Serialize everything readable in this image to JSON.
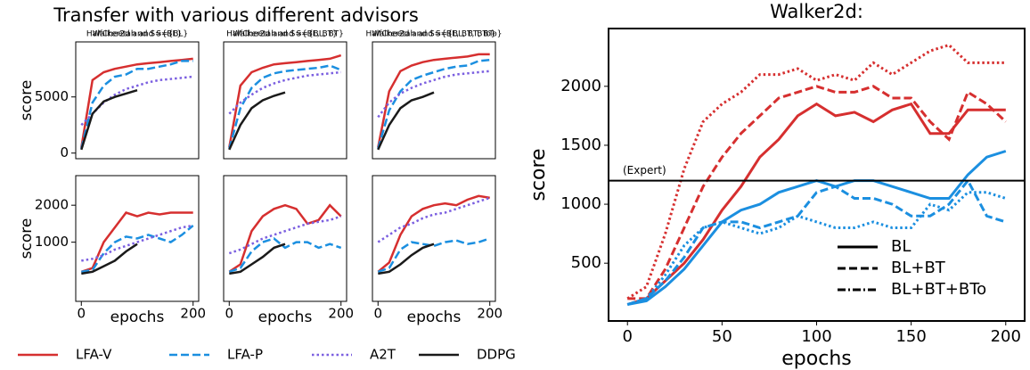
{
  "figure_title": "Transfer with various different advisors",
  "chart_data": [
    {
      "type": "line",
      "title": "HalfCheetah and S={BL}",
      "ylabel": "score",
      "xlim": [
        -10,
        210
      ],
      "ylim": [
        -500,
        9900
      ],
      "yticks": [
        0,
        5000
      ],
      "x": [
        0,
        20,
        40,
        60,
        80,
        100,
        120,
        140,
        160,
        180,
        200
      ],
      "series": [
        {
          "name": "LFA-V",
          "color": "#d62f2f",
          "dash": "solid",
          "values": [
            500,
            6500,
            7200,
            7500,
            7700,
            7900,
            8000,
            8100,
            8200,
            8300,
            8400
          ]
        },
        {
          "name": "LFA-P",
          "color": "#1b8fe0",
          "dash": "dashed",
          "values": [
            400,
            4500,
            6000,
            6800,
            7000,
            7500,
            7500,
            7700,
            7900,
            8200,
            8200
          ]
        },
        {
          "name": "A2T",
          "color": "#7b5fe0",
          "dash": "dotted",
          "values": [
            2500,
            3500,
            4500,
            5200,
            5700,
            6000,
            6300,
            6500,
            6600,
            6700,
            6800
          ]
        },
        {
          "name": "DDPG",
          "color": "#1a1a1a",
          "dash": "solid",
          "values": [
            300,
            3500,
            4600,
            5000,
            5300,
            5600,
            null,
            null,
            null,
            null,
            null
          ]
        }
      ]
    },
    {
      "type": "line",
      "title": "HalfCheetah and S={BL, BT}",
      "xlim": [
        -10,
        210
      ],
      "ylim": [
        -500,
        9900
      ],
      "x": [
        0,
        20,
        40,
        60,
        80,
        100,
        120,
        140,
        160,
        180,
        200
      ],
      "series": [
        {
          "name": "LFA-V",
          "color": "#d62f2f",
          "dash": "solid",
          "values": [
            500,
            6000,
            7200,
            7600,
            7900,
            8000,
            8100,
            8200,
            8300,
            8400,
            8700
          ]
        },
        {
          "name": "LFA-P",
          "color": "#1b8fe0",
          "dash": "dashed",
          "values": [
            400,
            4000,
            5800,
            6700,
            7100,
            7300,
            7400,
            7500,
            7600,
            7800,
            7400
          ]
        },
        {
          "name": "A2T",
          "color": "#7b5fe0",
          "dash": "dotted",
          "values": [
            3500,
            4500,
            5200,
            5800,
            6200,
            6500,
            6700,
            6900,
            7000,
            7100,
            7200
          ]
        },
        {
          "name": "DDPG",
          "color": "#1a1a1a",
          "dash": "solid",
          "values": [
            300,
            2500,
            4000,
            4700,
            5100,
            5400,
            null,
            null,
            null,
            null,
            null
          ]
        }
      ]
    },
    {
      "type": "line",
      "title": "HalfCheetah and S={BL, BT, BTo}",
      "xlim": [
        -10,
        210
      ],
      "ylim": [
        -500,
        9900
      ],
      "x": [
        0,
        20,
        40,
        60,
        80,
        100,
        120,
        140,
        160,
        180,
        200
      ],
      "series": [
        {
          "name": "LFA-V",
          "color": "#d62f2f",
          "dash": "solid",
          "values": [
            500,
            5500,
            7300,
            7800,
            8100,
            8300,
            8400,
            8500,
            8600,
            8800,
            8800
          ]
        },
        {
          "name": "LFA-P",
          "color": "#1b8fe0",
          "dash": "dashed",
          "values": [
            400,
            3800,
            5500,
            6500,
            6900,
            7200,
            7500,
            7700,
            7800,
            8200,
            8300
          ]
        },
        {
          "name": "A2T",
          "color": "#7b5fe0",
          "dash": "dotted",
          "values": [
            3200,
            4500,
            5300,
            5800,
            6200,
            6500,
            6800,
            7000,
            7100,
            7200,
            7300
          ]
        },
        {
          "name": "DDPG",
          "color": "#1a1a1a",
          "dash": "solid",
          "values": [
            300,
            2500,
            4000,
            4700,
            5000,
            5400,
            null,
            null,
            null,
            null,
            null
          ]
        }
      ]
    },
    {
      "type": "line",
      "title": "Walker2d and S={BL}",
      "ylabel": "score",
      "xlabel": "epochs",
      "xlim": [
        -10,
        210
      ],
      "ylim": [
        -600,
        2800
      ],
      "yticks": [
        1000,
        2000
      ],
      "xticks": [
        0,
        200
      ],
      "x": [
        0,
        20,
        40,
        60,
        80,
        100,
        120,
        140,
        160,
        180,
        200
      ],
      "series": [
        {
          "name": "LFA-V",
          "color": "#d62f2f",
          "dash": "solid",
          "values": [
            200,
            300,
            1000,
            1400,
            1800,
            1700,
            1800,
            1750,
            1800,
            1800,
            1800
          ]
        },
        {
          "name": "LFA-P",
          "color": "#1b8fe0",
          "dash": "dashed",
          "values": [
            200,
            250,
            700,
            1000,
            1150,
            1100,
            1200,
            1100,
            1000,
            1200,
            1450
          ]
        },
        {
          "name": "A2T",
          "color": "#7b5fe0",
          "dash": "dotted",
          "values": [
            500,
            550,
            650,
            800,
            900,
            1000,
            1100,
            1200,
            1300,
            1400,
            1450
          ]
        },
        {
          "name": "DDPG",
          "color": "#1a1a1a",
          "dash": "solid",
          "values": [
            150,
            200,
            350,
            500,
            750,
            950,
            null,
            null,
            null,
            null,
            null
          ]
        }
      ]
    },
    {
      "type": "line",
      "title": "Walker2d and S={BL, BT}",
      "xlabel": "epochs",
      "xlim": [
        -10,
        210
      ],
      "ylim": [
        -600,
        2800
      ],
      "xticks": [
        0,
        200
      ],
      "x": [
        0,
        20,
        40,
        60,
        80,
        100,
        120,
        140,
        160,
        180,
        200
      ],
      "series": [
        {
          "name": "LFA-V",
          "color": "#d62f2f",
          "dash": "solid",
          "values": [
            200,
            400,
            1300,
            1700,
            1900,
            2000,
            1900,
            1500,
            1600,
            2000,
            1700
          ]
        },
        {
          "name": "LFA-P",
          "color": "#1b8fe0",
          "dash": "dashed",
          "values": [
            200,
            300,
            750,
            1000,
            1100,
            850,
            1000,
            1000,
            850,
            950,
            850
          ]
        },
        {
          "name": "A2T",
          "color": "#7b5fe0",
          "dash": "dotted",
          "values": [
            700,
            800,
            950,
            1100,
            1200,
            1300,
            1400,
            1500,
            1550,
            1600,
            1700
          ]
        },
        {
          "name": "DDPG",
          "color": "#1a1a1a",
          "dash": "solid",
          "values": [
            150,
            200,
            400,
            600,
            850,
            950,
            null,
            null,
            null,
            null,
            null
          ]
        }
      ]
    },
    {
      "type": "line",
      "title": "Walker2d and S={BL, BT, BTo}",
      "xlabel": "epochs",
      "xlim": [
        -10,
        210
      ],
      "ylim": [
        -600,
        2800
      ],
      "xticks": [
        0,
        200
      ],
      "x": [
        0,
        20,
        40,
        60,
        80,
        100,
        120,
        140,
        160,
        180,
        200
      ],
      "series": [
        {
          "name": "LFA-V",
          "color": "#d62f2f",
          "dash": "solid",
          "values": [
            200,
            450,
            1200,
            1700,
            1900,
            2000,
            2050,
            2000,
            2150,
            2250,
            2200
          ]
        },
        {
          "name": "LFA-P",
          "color": "#1b8fe0",
          "dash": "dashed",
          "values": [
            200,
            300,
            800,
            1000,
            950,
            900,
            1000,
            1050,
            950,
            1000,
            1100
          ]
        },
        {
          "name": "A2T",
          "color": "#7b5fe0",
          "dash": "dotted",
          "values": [
            1000,
            1200,
            1400,
            1500,
            1650,
            1750,
            1800,
            1900,
            2000,
            2100,
            2200
          ]
        },
        {
          "name": "DDPG",
          "color": "#1a1a1a",
          "dash": "solid",
          "values": [
            150,
            200,
            400,
            650,
            850,
            950,
            null,
            null,
            null,
            null,
            null
          ]
        }
      ]
    },
    {
      "type": "line",
      "title": "Walker2d:",
      "ylabel": "score",
      "xlabel": "epochs",
      "xlim": [
        -10,
        210
      ],
      "ylim": [
        10,
        2490
      ],
      "xticks": [
        0,
        50,
        100,
        150,
        200
      ],
      "yticks": [
        500,
        1000,
        1500,
        2000
      ],
      "hline": 1200,
      "hline_label": "(Expert)",
      "legend_color": "#000000",
      "x": [
        0,
        10,
        20,
        30,
        40,
        50,
        60,
        70,
        80,
        90,
        100,
        110,
        120,
        130,
        140,
        150,
        160,
        170,
        180,
        190,
        200
      ],
      "series": [
        {
          "name": "BL",
          "color": "#d62f2f",
          "dash": "solid",
          "values": [
            150,
            200,
            350,
            500,
            700,
            950,
            1150,
            1400,
            1550,
            1750,
            1850,
            1750,
            1780,
            1700,
            1800,
            1850,
            1600,
            1600,
            1800,
            1800,
            1800
          ]
        },
        {
          "name": "BL+BT",
          "color": "#d62f2f",
          "dash": "dashed",
          "values": [
            200,
            200,
            450,
            800,
            1150,
            1400,
            1600,
            1750,
            1900,
            1950,
            2000,
            1950,
            1950,
            2000,
            1900,
            1900,
            1700,
            1550,
            1950,
            1850,
            1700
          ]
        },
        {
          "name": "BL+BT+BTo",
          "color": "#d62f2f",
          "dash": "dotted",
          "values": [
            200,
            300,
            750,
            1300,
            1700,
            1850,
            1950,
            2100,
            2100,
            2150,
            2050,
            2100,
            2050,
            2200,
            2100,
            2200,
            2300,
            2350,
            2200,
            2200,
            2200
          ]
        },
        {
          "name": "BL",
          "color": "#1b8fe0",
          "dash": "solid",
          "values": [
            150,
            180,
            300,
            450,
            650,
            850,
            950,
            1000,
            1100,
            1150,
            1200,
            1150,
            1200,
            1200,
            1150,
            1100,
            1050,
            1050,
            1250,
            1400,
            1450
          ]
        },
        {
          "name": "BL+BT",
          "color": "#1b8fe0",
          "dash": "dashed",
          "values": [
            150,
            200,
            350,
            550,
            800,
            850,
            850,
            800,
            850,
            900,
            1100,
            1150,
            1050,
            1050,
            1000,
            900,
            900,
            1000,
            1200,
            900,
            850
          ]
        },
        {
          "name": "BL+BT+BTo",
          "color": "#1b8fe0",
          "dash": "dotted",
          "values": [
            150,
            200,
            400,
            650,
            800,
            850,
            800,
            750,
            800,
            900,
            850,
            800,
            800,
            850,
            800,
            800,
            1000,
            950,
            1100,
            1100,
            1050
          ]
        }
      ]
    }
  ]
}
